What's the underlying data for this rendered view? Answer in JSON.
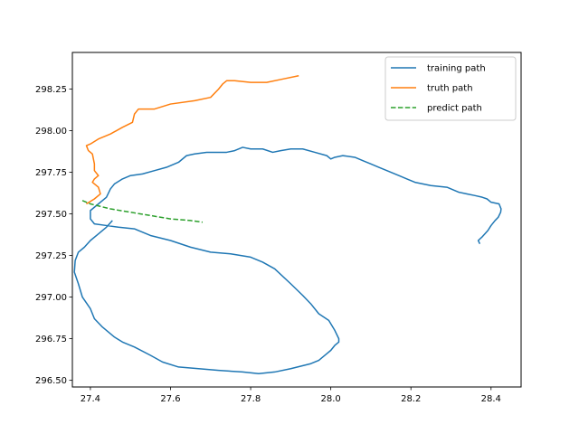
{
  "chart_data": {
    "type": "line",
    "title": "",
    "xlabel": "",
    "ylabel": "",
    "xlim": [
      27.355,
      28.475
    ],
    "ylim": [
      296.46,
      298.47
    ],
    "xticks": [
      27.4,
      27.6,
      27.8,
      28.0,
      28.2,
      28.4
    ],
    "yticks": [
      296.5,
      296.75,
      297.0,
      297.25,
      297.5,
      297.75,
      298.0,
      298.25
    ],
    "xtick_labels": [
      "27.4",
      "27.6",
      "27.8",
      "28.0",
      "28.2",
      "28.4"
    ],
    "ytick_labels": [
      "296.50",
      "296.75",
      "297.00",
      "297.25",
      "297.50",
      "297.75",
      "298.00",
      "298.25"
    ],
    "grid": false,
    "legend_position": "top-right",
    "series": [
      {
        "name": "training path",
        "color": "#1f77b4",
        "dash": "solid",
        "points": [
          [
            28.372,
            297.32
          ],
          [
            28.368,
            297.34
          ],
          [
            28.377,
            297.36
          ],
          [
            28.392,
            297.4
          ],
          [
            28.4,
            297.43
          ],
          [
            28.41,
            297.46
          ],
          [
            28.418,
            297.48
          ],
          [
            28.424,
            297.51
          ],
          [
            28.425,
            297.53
          ],
          [
            28.42,
            297.56
          ],
          [
            28.4,
            297.57
          ],
          [
            28.39,
            297.59
          ],
          [
            28.378,
            297.6
          ],
          [
            28.36,
            297.61
          ],
          [
            28.34,
            297.62
          ],
          [
            28.32,
            297.63
          ],
          [
            28.29,
            297.66
          ],
          [
            28.25,
            297.67
          ],
          [
            28.21,
            297.69
          ],
          [
            28.19,
            297.71
          ],
          [
            28.17,
            297.73
          ],
          [
            28.14,
            297.76
          ],
          [
            28.12,
            297.78
          ],
          [
            28.1,
            297.8
          ],
          [
            28.08,
            297.82
          ],
          [
            28.06,
            297.84
          ],
          [
            28.03,
            297.85
          ],
          [
            28.01,
            297.84
          ],
          [
            28.0,
            297.83
          ],
          [
            27.99,
            297.85
          ],
          [
            27.96,
            297.87
          ],
          [
            27.93,
            297.89
          ],
          [
            27.9,
            297.89
          ],
          [
            27.875,
            297.88
          ],
          [
            27.855,
            297.87
          ],
          [
            27.83,
            297.89
          ],
          [
            27.8,
            297.89
          ],
          [
            27.78,
            297.9
          ],
          [
            27.76,
            297.88
          ],
          [
            27.74,
            297.87
          ],
          [
            27.72,
            297.87
          ],
          [
            27.69,
            297.87
          ],
          [
            27.66,
            297.86
          ],
          [
            27.64,
            297.85
          ],
          [
            27.62,
            297.81
          ],
          [
            27.59,
            297.78
          ],
          [
            27.56,
            297.76
          ],
          [
            27.53,
            297.74
          ],
          [
            27.5,
            297.73
          ],
          [
            27.48,
            297.71
          ],
          [
            27.46,
            297.68
          ],
          [
            27.45,
            297.65
          ],
          [
            27.44,
            297.6
          ],
          [
            27.42,
            297.56
          ],
          [
            27.4,
            297.52
          ],
          [
            27.4,
            297.47
          ],
          [
            27.41,
            297.44
          ],
          [
            27.44,
            297.43
          ],
          [
            27.47,
            297.42
          ],
          [
            27.51,
            297.41
          ],
          [
            27.55,
            297.37
          ],
          [
            27.6,
            297.34
          ],
          [
            27.65,
            297.3
          ],
          [
            27.7,
            297.27
          ],
          [
            27.75,
            297.26
          ],
          [
            27.8,
            297.24
          ],
          [
            27.83,
            297.21
          ],
          [
            27.86,
            297.17
          ],
          [
            27.9,
            297.08
          ],
          [
            27.93,
            297.01
          ],
          [
            27.95,
            296.96
          ],
          [
            27.97,
            296.9
          ],
          [
            27.995,
            296.86
          ],
          [
            28.01,
            296.8
          ],
          [
            28.02,
            296.75
          ],
          [
            28.02,
            296.73
          ],
          [
            28.01,
            296.71
          ],
          [
            28.0,
            296.68
          ],
          [
            27.99,
            296.66
          ],
          [
            27.97,
            296.62
          ],
          [
            27.95,
            296.6
          ],
          [
            27.9,
            296.57
          ],
          [
            27.86,
            296.55
          ],
          [
            27.82,
            296.54
          ],
          [
            27.78,
            296.55
          ],
          [
            27.72,
            296.56
          ],
          [
            27.67,
            296.57
          ],
          [
            27.62,
            296.58
          ],
          [
            27.58,
            296.61
          ],
          [
            27.55,
            296.65
          ],
          [
            27.51,
            296.7
          ],
          [
            27.48,
            296.73
          ],
          [
            27.46,
            296.76
          ],
          [
            27.43,
            296.82
          ],
          [
            27.41,
            296.87
          ],
          [
            27.4,
            296.93
          ],
          [
            27.38,
            297.0
          ],
          [
            27.37,
            297.08
          ],
          [
            27.36,
            297.15
          ],
          [
            27.362,
            297.22
          ],
          [
            27.37,
            297.27
          ],
          [
            27.385,
            297.3
          ],
          [
            27.4,
            297.34
          ],
          [
            27.42,
            297.38
          ],
          [
            27.44,
            297.42
          ],
          [
            27.455,
            297.46
          ]
        ]
      },
      {
        "name": "truth path",
        "color": "#ff7f0e",
        "dash": "solid",
        "points": [
          [
            27.92,
            298.33
          ],
          [
            27.88,
            298.31
          ],
          [
            27.84,
            298.29
          ],
          [
            27.8,
            298.29
          ],
          [
            27.76,
            298.3
          ],
          [
            27.74,
            298.3
          ],
          [
            27.73,
            298.28
          ],
          [
            27.72,
            298.25
          ],
          [
            27.7,
            298.2
          ],
          [
            27.66,
            298.18
          ],
          [
            27.6,
            298.16
          ],
          [
            27.56,
            298.13
          ],
          [
            27.52,
            298.13
          ],
          [
            27.51,
            298.1
          ],
          [
            27.505,
            298.05
          ],
          [
            27.48,
            298.02
          ],
          [
            27.45,
            297.98
          ],
          [
            27.42,
            297.95
          ],
          [
            27.4,
            297.92
          ],
          [
            27.39,
            297.91
          ],
          [
            27.395,
            297.88
          ],
          [
            27.405,
            297.86
          ],
          [
            27.41,
            297.8
          ],
          [
            27.41,
            297.76
          ],
          [
            27.42,
            297.73
          ],
          [
            27.41,
            297.71
          ],
          [
            27.405,
            297.69
          ],
          [
            27.42,
            297.66
          ],
          [
            27.425,
            297.62
          ],
          [
            27.41,
            297.59
          ],
          [
            27.39,
            297.56
          ]
        ]
      },
      {
        "name": "predict path",
        "color": "#2ca02c",
        "dash": "dashed",
        "points": [
          [
            27.38,
            297.58
          ],
          [
            27.4,
            297.56
          ],
          [
            27.45,
            297.53
          ],
          [
            27.5,
            297.51
          ],
          [
            27.55,
            297.49
          ],
          [
            27.6,
            297.47
          ],
          [
            27.65,
            297.46
          ],
          [
            27.68,
            297.45
          ]
        ]
      }
    ]
  }
}
